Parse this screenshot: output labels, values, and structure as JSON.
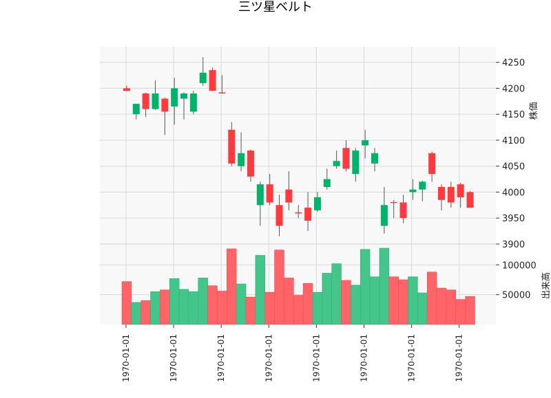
{
  "chart_data": {
    "type": "candlestick",
    "title": "三ツ星ベルト",
    "x_tick_labels": [
      "1970-01-01",
      "1970-01-01",
      "1970-01-01",
      "1970-01-01",
      "1970-01-01",
      "1970-01-01",
      "1970-01-01",
      "1970-01-01"
    ],
    "price_axis": {
      "label": "株価",
      "ylim": [
        3900,
        4280
      ],
      "ticks": [
        3900,
        3950,
        4000,
        4050,
        4100,
        4150,
        4200,
        4250
      ]
    },
    "volume_axis": {
      "label": "出来高",
      "ylim": [
        0,
        135000
      ],
      "ticks": [
        50000,
        100000
      ]
    },
    "colors": {
      "up": "#00b36b",
      "down": "#ff3a3f",
      "up_volume": "#44c58a",
      "down_volume": "#ff6469",
      "grid": "#d9d9d9",
      "panel_bg": "#f8f8f8"
    },
    "grid": true,
    "candles": [
      {
        "open": 4200,
        "high": 4205,
        "low": 4195,
        "close": 4195,
        "volume": 72000
      },
      {
        "open": 4150,
        "high": 4170,
        "low": 4140,
        "close": 4170,
        "volume": 37000
      },
      {
        "open": 4190,
        "high": 4192,
        "low": 4145,
        "close": 4160,
        "volume": 40000
      },
      {
        "open": 4160,
        "high": 4215,
        "low": 4158,
        "close": 4190,
        "volume": 55000
      },
      {
        "open": 4180,
        "high": 4182,
        "low": 4110,
        "close": 4155,
        "volume": 58000
      },
      {
        "open": 4165,
        "high": 4220,
        "low": 4130,
        "close": 4200,
        "volume": 77000
      },
      {
        "open": 4180,
        "high": 4192,
        "low": 4140,
        "close": 4190,
        "volume": 59000
      },
      {
        "open": 4155,
        "high": 4195,
        "low": 4150,
        "close": 4190,
        "volume": 55000
      },
      {
        "open": 4210,
        "high": 4260,
        "low": 4205,
        "close": 4230,
        "volume": 78000
      },
      {
        "open": 4235,
        "high": 4240,
        "low": 4195,
        "close": 4195,
        "volume": 65000
      },
      {
        "open": 4192,
        "high": 4225,
        "low": 4190,
        "close": 4190,
        "volume": 56000
      },
      {
        "open": 4120,
        "high": 4135,
        "low": 4050,
        "close": 4055,
        "volume": 127000
      },
      {
        "open": 4050,
        "high": 4115,
        "low": 4040,
        "close": 4075,
        "volume": 68000
      },
      {
        "open": 4080,
        "high": 4082,
        "low": 4020,
        "close": 4030,
        "volume": 46000
      },
      {
        "open": 3975,
        "high": 4020,
        "low": 3935,
        "close": 4015,
        "volume": 116000
      },
      {
        "open": 4015,
        "high": 4035,
        "low": 3975,
        "close": 3980,
        "volume": 54000
      },
      {
        "open": 3975,
        "high": 3995,
        "low": 3915,
        "close": 3935,
        "volume": 125000
      },
      {
        "open": 4005,
        "high": 4040,
        "low": 3965,
        "close": 3980,
        "volume": 78000
      },
      {
        "open": 3960,
        "high": 3975,
        "low": 3950,
        "close": 3960,
        "volume": 49000
      },
      {
        "open": 3970,
        "high": 4000,
        "low": 3925,
        "close": 3945,
        "volume": 69000
      },
      {
        "open": 3965,
        "high": 4000,
        "low": 3962,
        "close": 3990,
        "volume": 54000
      },
      {
        "open": 4010,
        "high": 4045,
        "low": 4005,
        "close": 4025,
        "volume": 86000
      },
      {
        "open": 4050,
        "high": 4080,
        "low": 4045,
        "close": 4060,
        "volume": 102000
      },
      {
        "open": 4085,
        "high": 4100,
        "low": 4040,
        "close": 4045,
        "volume": 74000
      },
      {
        "open": 4035,
        "high": 4085,
        "low": 4020,
        "close": 4080,
        "volume": 66000
      },
      {
        "open": 4090,
        "high": 4120,
        "low": 4065,
        "close": 4100,
        "volume": 126000
      },
      {
        "open": 4055,
        "high": 4085,
        "low": 4040,
        "close": 4075,
        "volume": 80000
      },
      {
        "open": 3935,
        "high": 4010,
        "low": 3920,
        "close": 3975,
        "volume": 128000
      },
      {
        "open": 3980,
        "high": 3985,
        "low": 3950,
        "close": 3980,
        "volume": 80000
      },
      {
        "open": 3980,
        "high": 3995,
        "low": 3940,
        "close": 3950,
        "volume": 75000
      },
      {
        "open": 4000,
        "high": 4025,
        "low": 3985,
        "close": 4005,
        "volume": 80000
      },
      {
        "open": 4005,
        "high": 4022,
        "low": 3982,
        "close": 4020,
        "volume": 53000
      },
      {
        "open": 4075,
        "high": 4078,
        "low": 4020,
        "close": 4035,
        "volume": 88000
      },
      {
        "open": 4010,
        "high": 4015,
        "low": 3965,
        "close": 3985,
        "volume": 61000
      },
      {
        "open": 4010,
        "high": 4020,
        "low": 3970,
        "close": 3980,
        "volume": 58000
      },
      {
        "open": 4015,
        "high": 4018,
        "low": 3970,
        "close": 3990,
        "volume": 42000
      },
      {
        "open": 4000,
        "high": 4002,
        "low": 3970,
        "close": 3970,
        "volume": 47000
      }
    ]
  }
}
